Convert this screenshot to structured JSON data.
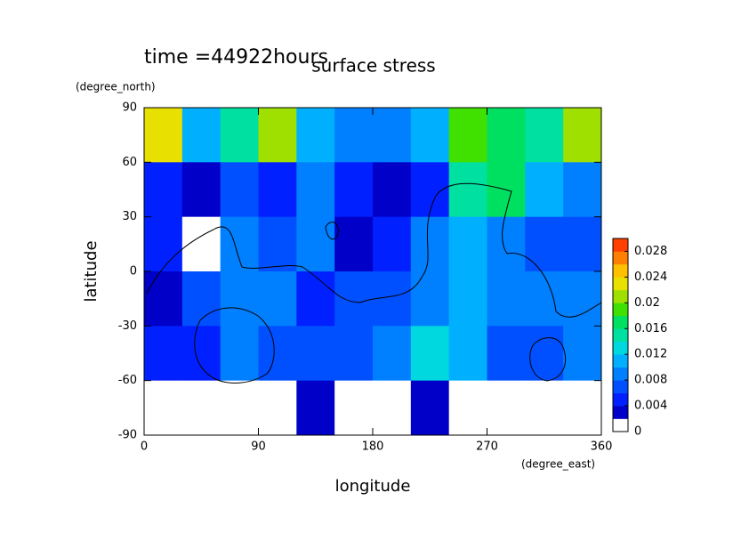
{
  "chart_data": {
    "type": "heatmap",
    "title": "surface stress",
    "subtitle": "time =44922hours",
    "xlabel": "longitude",
    "xunit": "(degree_east)",
    "ylabel": "latitude",
    "yunit": "(degree_north)",
    "xlim": [
      0,
      360
    ],
    "xticks": [
      0,
      90,
      180,
      270,
      360
    ],
    "ylim": [
      -90,
      90
    ],
    "yticks": [
      -90,
      -60,
      -30,
      0,
      30,
      60,
      90
    ],
    "x": [
      15,
      45,
      75,
      105,
      135,
      165,
      195,
      225,
      255,
      285,
      315,
      345
    ],
    "y": [
      75,
      45,
      15,
      -15,
      -45,
      -75
    ],
    "z": [
      [
        0.022,
        0.01,
        0.014,
        0.02,
        0.01,
        0.008,
        0.008,
        0.01,
        0.018,
        0.016,
        0.014,
        0.02
      ],
      [
        0.004,
        0.002,
        0.006,
        0.004,
        0.008,
        0.004,
        0.002,
        0.004,
        0.014,
        0.016,
        0.01,
        0.008
      ],
      [
        0.004,
        0.001,
        0.008,
        0.006,
        0.008,
        0.002,
        0.004,
        0.008,
        0.01,
        0.008,
        0.006,
        0.006
      ],
      [
        0.002,
        0.006,
        0.008,
        0.008,
        0.004,
        0.006,
        0.006,
        0.008,
        0.01,
        0.008,
        0.008,
        0.008
      ],
      [
        0.004,
        0.004,
        0.008,
        0.006,
        0.006,
        0.006,
        0.008,
        0.012,
        0.01,
        0.006,
        0.006,
        0.008
      ],
      [
        0.001,
        0.001,
        0.001,
        0.001,
        0.002,
        0.001,
        0.001,
        0.003,
        0.001,
        0.001,
        0.001,
        0.001
      ]
    ],
    "colorbar": {
      "lim": [
        0,
        0.03
      ],
      "ticks": [
        0,
        0.004,
        0.008,
        0.012,
        0.016,
        0.02,
        0.024,
        0.028
      ],
      "colors": [
        "#ffffff",
        "#0000c8",
        "#0020ff",
        "#0050ff",
        "#0080ff",
        "#00b0ff",
        "#00d8e0",
        "#00e0a0",
        "#00e060",
        "#40e000",
        "#a0e000",
        "#e8e000",
        "#ffc000",
        "#ff8000",
        "#ff4000"
      ]
    }
  }
}
